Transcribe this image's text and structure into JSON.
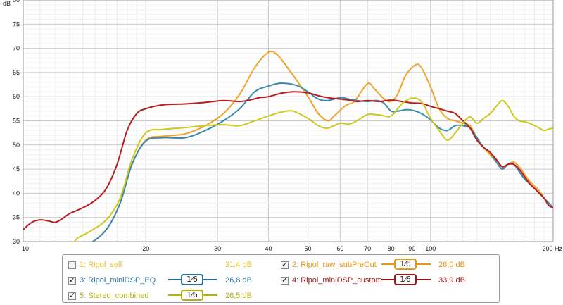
{
  "chart_data": {
    "type": "line",
    "ylabel": "dB",
    "xunit": "Hz",
    "xscale": "log",
    "xlim": [
      10,
      200
    ],
    "ylim": [
      30,
      80
    ],
    "x_ticks": [
      "10",
      "20",
      "30",
      "40",
      "50",
      "60",
      "70",
      "80",
      "90",
      "100",
      "200 Hz"
    ],
    "y_ticks": [
      "30",
      "35",
      "40",
      "45",
      "50",
      "55",
      "60",
      "65",
      "70",
      "75",
      "80"
    ],
    "grid": true,
    "series": [
      {
        "name": "Ripol_self",
        "color": "#d8c63a",
        "visible": false,
        "points": []
      },
      {
        "name": "Ripol_raw_subPreOut",
        "color": "#f2a22c",
        "visible": true,
        "points": [
          [
            13,
            28.0
          ],
          [
            14.5,
            29.5
          ],
          [
            16,
            32.5
          ],
          [
            17.3,
            38.0
          ],
          [
            18.5,
            46.0
          ],
          [
            20,
            51.0
          ],
          [
            22,
            51.8
          ],
          [
            25,
            52.3
          ],
          [
            28,
            54.0
          ],
          [
            31,
            56.5
          ],
          [
            34,
            60.5
          ],
          [
            37,
            66.0
          ],
          [
            40,
            69.2
          ],
          [
            42,
            68.7
          ],
          [
            45,
            65.5
          ],
          [
            50,
            60.0
          ],
          [
            53,
            56.5
          ],
          [
            56,
            55.0
          ],
          [
            58,
            56.0
          ],
          [
            62,
            58.2
          ],
          [
            65,
            59.0
          ],
          [
            70,
            62.7
          ],
          [
            73,
            61.5
          ],
          [
            77,
            59.5
          ],
          [
            80,
            59.0
          ],
          [
            83,
            60.5
          ],
          [
            87,
            64.5
          ],
          [
            92,
            66.6
          ],
          [
            95,
            66.0
          ],
          [
            100,
            62.0
          ],
          [
            105,
            57.5
          ],
          [
            110,
            55.5
          ],
          [
            115,
            55.0
          ],
          [
            120,
            54.5
          ],
          [
            125,
            54.0
          ],
          [
            130,
            51.5
          ],
          [
            135,
            49.5
          ],
          [
            140,
            48.0
          ],
          [
            145,
            46.5
          ],
          [
            150,
            45.5
          ],
          [
            155,
            46.0
          ],
          [
            160,
            46.5
          ],
          [
            165,
            45.5
          ],
          [
            170,
            44.0
          ],
          [
            175,
            42.5
          ],
          [
            180,
            41.5
          ],
          [
            185,
            40.5
          ],
          [
            190,
            39.0
          ],
          [
            195,
            37.5
          ],
          [
            200,
            37.0
          ]
        ]
      },
      {
        "name": "Ripol_miniDSP_EQ",
        "color": "#3a8ab0",
        "visible": true,
        "points": [
          [
            13,
            28.0
          ],
          [
            14.5,
            29.5
          ],
          [
            16,
            32.5
          ],
          [
            17.3,
            38.0
          ],
          [
            18.5,
            46.0
          ],
          [
            20,
            50.8
          ],
          [
            22,
            51.5
          ],
          [
            25,
            51.5
          ],
          [
            28,
            53.0
          ],
          [
            31,
            55.0
          ],
          [
            34,
            57.5
          ],
          [
            37,
            61.0
          ],
          [
            40,
            62.2
          ],
          [
            43,
            62.8
          ],
          [
            47,
            62.3
          ],
          [
            50,
            61.0
          ],
          [
            53,
            59.5
          ],
          [
            56,
            59.2
          ],
          [
            60,
            59.8
          ],
          [
            63,
            59.5
          ],
          [
            66,
            59.2
          ],
          [
            70,
            59.0
          ],
          [
            74,
            59.2
          ],
          [
            77,
            58.6
          ],
          [
            80,
            57.0
          ],
          [
            83,
            57.0
          ],
          [
            87,
            57.3
          ],
          [
            90,
            57.2
          ],
          [
            95,
            56.5
          ],
          [
            100,
            55.2
          ],
          [
            105,
            53.5
          ],
          [
            110,
            53.0
          ],
          [
            115,
            54.0
          ],
          [
            120,
            54.0
          ],
          [
            125,
            53.5
          ],
          [
            130,
            51.5
          ],
          [
            135,
            49.5
          ],
          [
            140,
            48.5
          ],
          [
            145,
            46.5
          ],
          [
            150,
            45.0
          ],
          [
            155,
            46.0
          ],
          [
            160,
            46.0
          ],
          [
            165,
            44.5
          ],
          [
            170,
            43.0
          ],
          [
            175,
            42.0
          ],
          [
            180,
            41.0
          ],
          [
            185,
            40.0
          ],
          [
            190,
            39.0
          ],
          [
            195,
            38.0
          ],
          [
            200,
            37.0
          ]
        ]
      },
      {
        "name": "Ripol_miniDSP_custom",
        "color": "#b81e1e",
        "visible": true,
        "points": [
          [
            10,
            32.5
          ],
          [
            10.5,
            34.0
          ],
          [
            11,
            34.5
          ],
          [
            11.5,
            34.3
          ],
          [
            12,
            34.0
          ],
          [
            12.5,
            34.8
          ],
          [
            13,
            35.8
          ],
          [
            14,
            37.0
          ],
          [
            15,
            38.5
          ],
          [
            16,
            41.0
          ],
          [
            17,
            46.0
          ],
          [
            18,
            53.0
          ],
          [
            19,
            56.5
          ],
          [
            20,
            57.5
          ],
          [
            22,
            58.3
          ],
          [
            25,
            58.5
          ],
          [
            28,
            58.8
          ],
          [
            31,
            59.2
          ],
          [
            34,
            59.0
          ],
          [
            36,
            59.3
          ],
          [
            38,
            59.8
          ],
          [
            40,
            60.0
          ],
          [
            43,
            60.7
          ],
          [
            46,
            61.0
          ],
          [
            50,
            60.8
          ],
          [
            53,
            60.2
          ],
          [
            56,
            59.8
          ],
          [
            60,
            59.5
          ],
          [
            63,
            59.3
          ],
          [
            66,
            59.0
          ],
          [
            70,
            59.2
          ],
          [
            75,
            59.0
          ],
          [
            80,
            59.3
          ],
          [
            85,
            59.0
          ],
          [
            90,
            58.7
          ],
          [
            95,
            58.6
          ],
          [
            100,
            58.0
          ],
          [
            105,
            57.5
          ],
          [
            110,
            57.0
          ],
          [
            115,
            56.5
          ],
          [
            120,
            55.0
          ],
          [
            125,
            53.5
          ],
          [
            130,
            51.0
          ],
          [
            135,
            49.5
          ],
          [
            140,
            48.5
          ],
          [
            145,
            47.0
          ],
          [
            150,
            45.5
          ],
          [
            155,
            46.0
          ],
          [
            160,
            46.0
          ],
          [
            165,
            45.0
          ],
          [
            170,
            43.5
          ],
          [
            175,
            42.0
          ],
          [
            180,
            41.0
          ],
          [
            185,
            40.0
          ],
          [
            190,
            39.0
          ],
          [
            195,
            37.5
          ],
          [
            200,
            37.0
          ]
        ]
      },
      {
        "name": "Stereo_combined",
        "color": "#cdc81e",
        "visible": true,
        "points": [
          [
            13,
            28.0
          ],
          [
            13.5,
            30.5
          ],
          [
            14.5,
            32.0
          ],
          [
            16,
            34.5
          ],
          [
            17.3,
            39.0
          ],
          [
            18.5,
            47.0
          ],
          [
            20,
            52.5
          ],
          [
            22,
            53.2
          ],
          [
            25,
            53.6
          ],
          [
            28,
            54.0
          ],
          [
            31,
            54.2
          ],
          [
            34,
            54.0
          ],
          [
            37,
            55.0
          ],
          [
            40,
            56.0
          ],
          [
            43,
            56.8
          ],
          [
            46,
            57.0
          ],
          [
            50,
            55.5
          ],
          [
            53,
            54.0
          ],
          [
            56,
            53.5
          ],
          [
            60,
            54.5
          ],
          [
            63,
            54.3
          ],
          [
            66,
            55.0
          ],
          [
            70,
            56.3
          ],
          [
            75,
            56.2
          ],
          [
            80,
            56.0
          ],
          [
            85,
            58.5
          ],
          [
            90,
            59.7
          ],
          [
            95,
            59.0
          ],
          [
            100,
            55.5
          ],
          [
            105,
            53.0
          ],
          [
            110,
            51.0
          ],
          [
            115,
            52.5
          ],
          [
            120,
            54.5
          ],
          [
            125,
            55.8
          ],
          [
            130,
            54.5
          ],
          [
            135,
            55.5
          ],
          [
            140,
            56.5
          ],
          [
            145,
            58.0
          ],
          [
            150,
            59.2
          ],
          [
            155,
            58.0
          ],
          [
            160,
            56.0
          ],
          [
            165,
            55.0
          ],
          [
            170,
            54.8
          ],
          [
            175,
            54.5
          ],
          [
            180,
            54.0
          ],
          [
            185,
            53.5
          ],
          [
            190,
            53.0
          ],
          [
            195,
            53.3
          ],
          [
            200,
            53.5
          ]
        ]
      }
    ]
  },
  "legend": [
    {
      "label": "1: Ripol_self",
      "checked": false,
      "value": "31,4 dB",
      "smoothing": "",
      "color": "#e0c030"
    },
    {
      "label": "2: Ripol_raw_subPreOut",
      "checked": true,
      "value": "26,0 dB",
      "smoothing": "1⁄6",
      "color": "#e89818"
    },
    {
      "label": "3: Ripol_miniDSP_EQ",
      "checked": true,
      "value": "26,8 dB",
      "smoothing": "1⁄6",
      "color": "#2a6f96"
    },
    {
      "label": "4: Ripol_miniDSP_custom",
      "checked": true,
      "value": "33,9 dB",
      "smoothing": "1⁄6",
      "color": "#9c1414"
    },
    {
      "label": "5: Stereo_combined",
      "checked": true,
      "value": "26,5 dB",
      "smoothing": "1⁄6",
      "color": "#b8b010"
    }
  ]
}
